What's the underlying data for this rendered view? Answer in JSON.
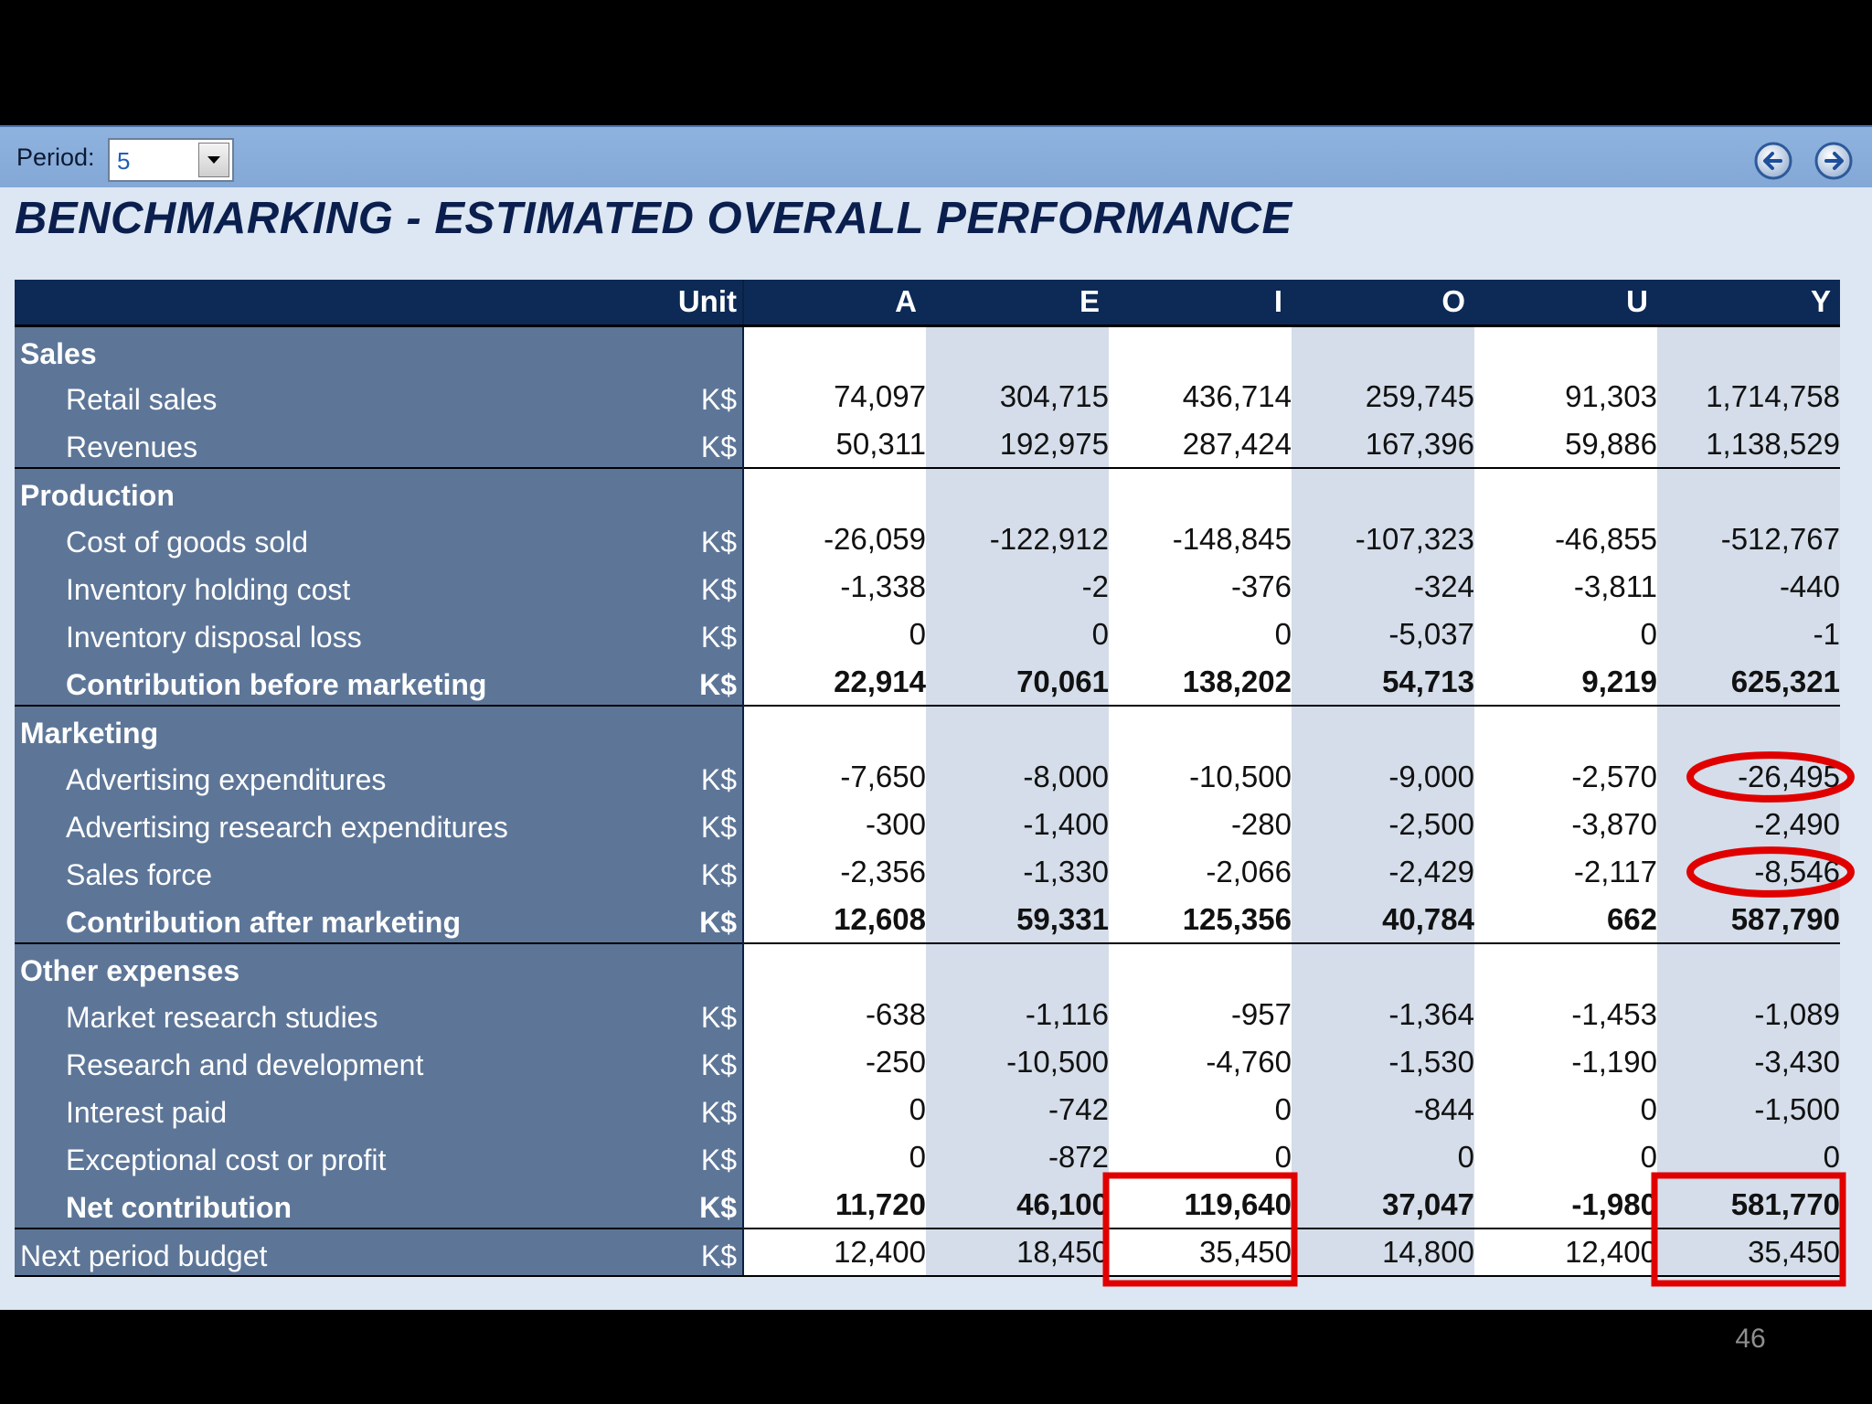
{
  "toolbar": {
    "period_label": "Period:",
    "period_value": "5"
  },
  "title": "BENCHMARKING - ESTIMATED OVERALL PERFORMANCE",
  "table": {
    "unit_header": "Unit",
    "columns": [
      "A",
      "E",
      "I",
      "O",
      "U",
      "Y"
    ],
    "rows": [
      {
        "kind": "category",
        "label": "Sales"
      },
      {
        "kind": "item",
        "label": "Retail sales",
        "unit": "K$",
        "values": [
          "74,097",
          "304,715",
          "436,714",
          "259,745",
          "91,303",
          "1,714,758"
        ]
      },
      {
        "kind": "item",
        "label": "Revenues",
        "unit": "K$",
        "values": [
          "50,311",
          "192,975",
          "287,424",
          "167,396",
          "59,886",
          "1,138,529"
        ]
      },
      {
        "kind": "category",
        "label": "Production"
      },
      {
        "kind": "item",
        "label": "Cost of goods sold",
        "unit": "K$",
        "values": [
          "-26,059",
          "-122,912",
          "-148,845",
          "-107,323",
          "-46,855",
          "-512,767"
        ]
      },
      {
        "kind": "item",
        "label": "Inventory holding cost",
        "unit": "K$",
        "values": [
          "-1,338",
          "-2",
          "-376",
          "-324",
          "-3,811",
          "-440"
        ]
      },
      {
        "kind": "item",
        "label": "Inventory disposal loss",
        "unit": "K$",
        "values": [
          "0",
          "0",
          "0",
          "-5,037",
          "0",
          "-1"
        ]
      },
      {
        "kind": "total",
        "label": "Contribution before marketing",
        "unit": "K$",
        "values": [
          "22,914",
          "70,061",
          "138,202",
          "54,713",
          "9,219",
          "625,321"
        ]
      },
      {
        "kind": "category",
        "label": "Marketing"
      },
      {
        "kind": "item",
        "label": "Advertising expenditures",
        "unit": "K$",
        "values": [
          "-7,650",
          "-8,000",
          "-10,500",
          "-9,000",
          "-2,570",
          "-26,495"
        ]
      },
      {
        "kind": "item",
        "label": "Advertising research expenditures",
        "unit": "K$",
        "values": [
          "-300",
          "-1,400",
          "-280",
          "-2,500",
          "-3,870",
          "-2,490"
        ]
      },
      {
        "kind": "item",
        "label": "Sales force",
        "unit": "K$",
        "values": [
          "-2,356",
          "-1,330",
          "-2,066",
          "-2,429",
          "-2,117",
          "-8,546"
        ]
      },
      {
        "kind": "total",
        "label": "Contribution after marketing",
        "unit": "K$",
        "values": [
          "12,608",
          "59,331",
          "125,356",
          "40,784",
          "662",
          "587,790"
        ]
      },
      {
        "kind": "category",
        "label": "Other expenses"
      },
      {
        "kind": "item",
        "label": "Market research studies",
        "unit": "K$",
        "values": [
          "-638",
          "-1,116",
          "-957",
          "-1,364",
          "-1,453",
          "-1,089"
        ]
      },
      {
        "kind": "item",
        "label": "Research and development",
        "unit": "K$",
        "values": [
          "-250",
          "-10,500",
          "-4,760",
          "-1,530",
          "-1,190",
          "-3,430"
        ]
      },
      {
        "kind": "item",
        "label": "Interest paid",
        "unit": "K$",
        "values": [
          "0",
          "-742",
          "0",
          "-844",
          "0",
          "-1,500"
        ]
      },
      {
        "kind": "item",
        "label": "Exceptional cost or profit",
        "unit": "K$",
        "values": [
          "0",
          "-872",
          "0",
          "0",
          "0",
          "0"
        ]
      },
      {
        "kind": "total",
        "label": "Net contribution",
        "unit": "K$",
        "values": [
          "11,720",
          "46,100",
          "119,640",
          "37,047",
          "-1,980",
          "581,770"
        ]
      },
      {
        "kind": "budget",
        "label": "Next period budget",
        "unit": "K$",
        "values": [
          "12,400",
          "18,450",
          "35,450",
          "14,800",
          "12,400",
          "35,450"
        ]
      }
    ]
  },
  "annotations": {
    "color": "#e00000",
    "ellipses": [
      {
        "row": "Advertising expenditures",
        "column": "Y"
      },
      {
        "row": "Sales force",
        "column": "Y"
      }
    ],
    "boxes": [
      {
        "rows": [
          "Net contribution",
          "Next period budget"
        ],
        "column": "I"
      },
      {
        "rows": [
          "Net contribution",
          "Next period budget"
        ],
        "column": "Y"
      }
    ]
  },
  "slide_number": "46"
}
